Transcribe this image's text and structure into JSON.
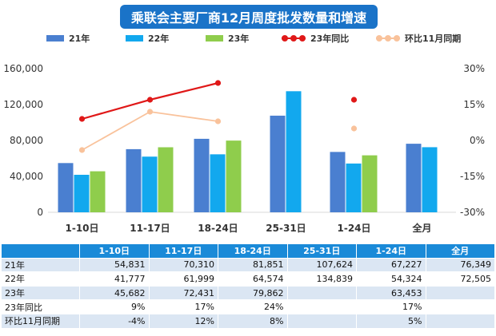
{
  "title": "乘联会主要厂商12月周度批发数量和增速",
  "colors": {
    "title_bg": "#1a73c8",
    "s21": "#4a7fd0",
    "s22": "#12a8ee",
    "s23": "#8fcd4c",
    "yoy23": "#e01818",
    "mom": "#f9c29b",
    "header_bg": "#1a8ad8",
    "axis_text": "#333333",
    "grid": "#d9d9d9"
  },
  "legend": [
    "21年",
    "22年",
    "23年",
    "23年同比",
    "环比11月同期"
  ],
  "chart_data": {
    "type": "bar",
    "title": "乘联会主要厂商12月周度批发数量和增速",
    "categories": [
      "1-10日",
      "11-17日",
      "18-24日",
      "25-31日",
      "1-24日",
      "全月"
    ],
    "series": [
      {
        "name": "21年",
        "values": [
          54831,
          70310,
          81851,
          107624,
          67227,
          76349
        ]
      },
      {
        "name": "22年",
        "values": [
          41777,
          61999,
          64574,
          134839,
          54324,
          72505
        ]
      },
      {
        "name": "23年",
        "values": [
          45682,
          72431,
          79862,
          null,
          63453,
          null
        ]
      }
    ],
    "line_series": [
      {
        "name": "23年同比",
        "values": [
          9,
          17,
          24,
          null,
          17,
          null
        ],
        "axis": "right"
      },
      {
        "name": "环比11月同期",
        "values": [
          -4,
          12,
          8,
          null,
          5,
          null
        ],
        "axis": "right"
      }
    ],
    "left_axis": {
      "ylim": [
        0,
        160000
      ],
      "ticks": [
        "0",
        "40,000",
        "80,000",
        "120,000",
        "160,000"
      ]
    },
    "right_axis": {
      "ylim": [
        -30,
        30
      ],
      "ticks": [
        "-30%",
        "-15%",
        "0%",
        "15%",
        "30%"
      ]
    },
    "grid": false,
    "legend_position": "top"
  },
  "table": {
    "headers": [
      "",
      "1-10日",
      "11-17日",
      "18-24日",
      "25-31日",
      "1-24日",
      "全月"
    ],
    "rows": [
      [
        "21年",
        "54,831",
        "70,310",
        "81,851",
        "107,624",
        "67,227",
        "76,349"
      ],
      [
        "22年",
        "41,777",
        "61,999",
        "64,574",
        "134,839",
        "54,324",
        "72,505"
      ],
      [
        "23年",
        "45,682",
        "72,431",
        "79,862",
        "",
        "63,453",
        ""
      ],
      [
        "23年同比",
        "9%",
        "17%",
        "24%",
        "",
        "17%",
        ""
      ],
      [
        "环比11月同期",
        "-4%",
        "12%",
        "8%",
        "",
        "5%",
        ""
      ]
    ]
  }
}
